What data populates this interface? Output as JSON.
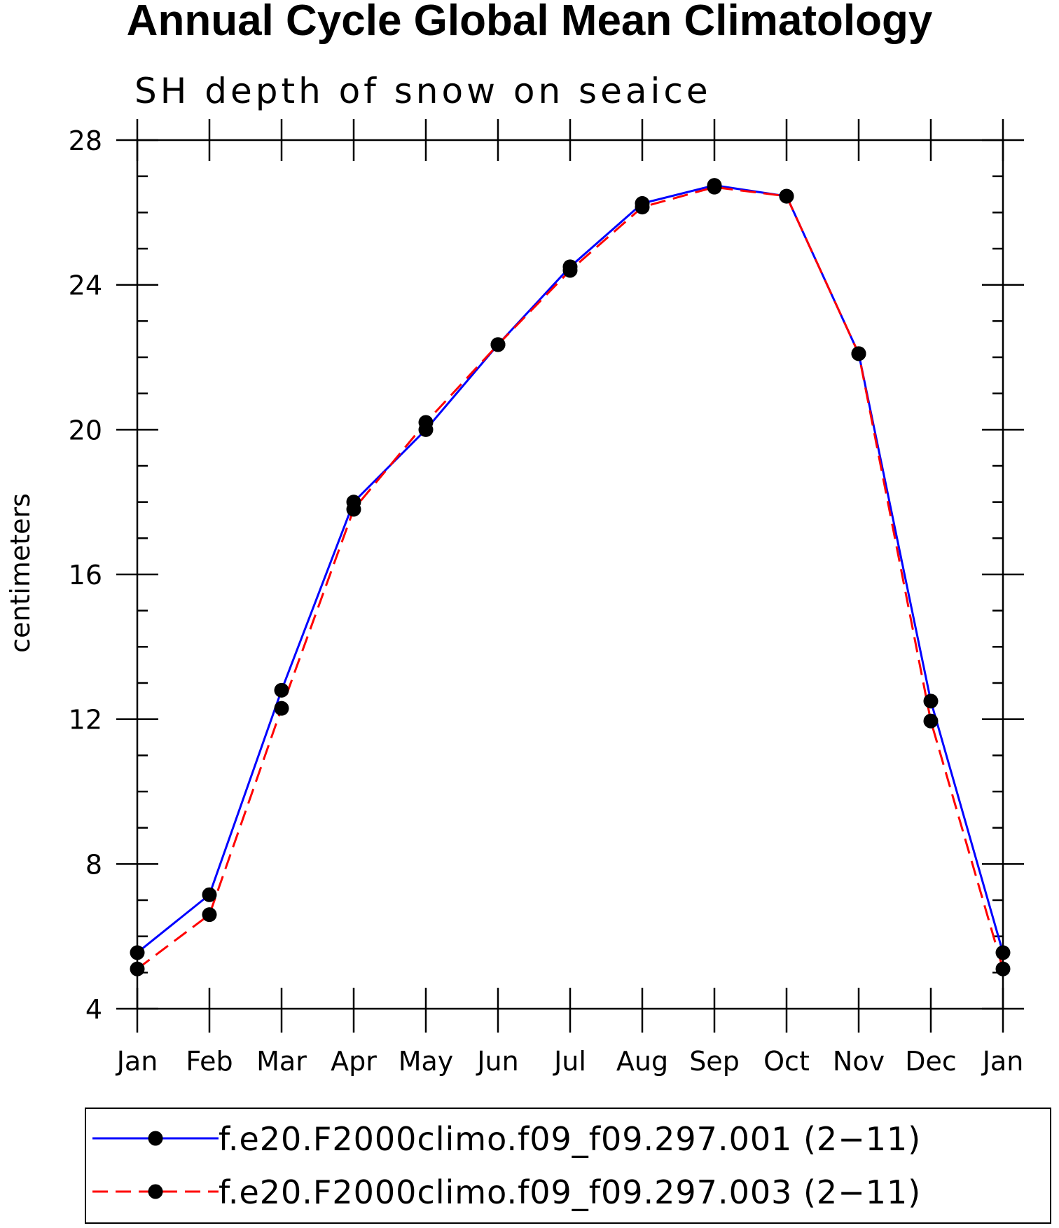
{
  "chart_data": {
    "type": "line",
    "title": "Annual Cycle Global Mean Climatology",
    "subtitle": "SH depth of snow on seaice",
    "ylabel": "centimeters",
    "xlabel": "",
    "categories": [
      "Jan",
      "Feb",
      "Mar",
      "Apr",
      "May",
      "Jun",
      "Jul",
      "Aug",
      "Sep",
      "Oct",
      "Nov",
      "Dec",
      "Jan"
    ],
    "ylim": [
      4,
      28
    ],
    "yticks": [
      "4",
      "8",
      "12",
      "16",
      "20",
      "24",
      "28"
    ],
    "series": [
      {
        "name": "f.e20.F2000climo.f09_f09.297.001 (2−11)",
        "color": "#0000ff",
        "dash": "solid",
        "values": [
          5.55,
          7.15,
          12.8,
          18.0,
          20.0,
          22.35,
          24.5,
          26.25,
          26.75,
          26.45,
          22.1,
          12.5,
          5.55
        ]
      },
      {
        "name": "f.e20.F2000climo.f09_f09.297.003 (2−11)",
        "color": "#ff0000",
        "dash": "dashed",
        "values": [
          5.1,
          6.6,
          12.3,
          17.8,
          20.2,
          22.35,
          24.4,
          26.15,
          26.7,
          26.45,
          22.1,
          11.95,
          5.1
        ]
      }
    ],
    "legend_position": "bottom",
    "grid": false,
    "marker_color": "#000000"
  }
}
